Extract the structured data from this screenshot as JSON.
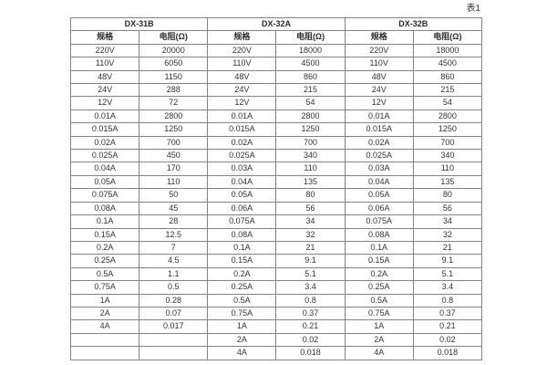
{
  "page": {
    "table_label": "表1"
  },
  "table": {
    "column_groups": [
      "DX-31B",
      "DX-32A",
      "DX-32B"
    ],
    "sub_headers": [
      "规格",
      "电阻(Ω)"
    ],
    "rows": [
      [
        "220V",
        "20000",
        "220V",
        "18000",
        "220V",
        "18000"
      ],
      [
        "110V",
        "6050",
        "110V",
        "4500",
        "110V",
        "4500"
      ],
      [
        "48V",
        "1150",
        "48V",
        "860",
        "48V",
        "860"
      ],
      [
        "24V",
        "288",
        "24V",
        "215",
        "24V",
        "215"
      ],
      [
        "12V",
        "72",
        "12V",
        "54",
        "12V",
        "54"
      ],
      [
        "0.01A",
        "2800",
        "0.01A",
        "2800",
        "0.01A",
        "2800"
      ],
      [
        "0.015A",
        "1250",
        "0.015A",
        "1250",
        "0.015A",
        "1250"
      ],
      [
        "0.02A",
        "700",
        "0.02A",
        "700",
        "0.02A",
        "700"
      ],
      [
        "0.025A",
        "450",
        "0.025A",
        "340",
        "0.025A",
        "340"
      ],
      [
        "0.04A",
        "170",
        "0.03A",
        "110",
        "0.03A",
        "110"
      ],
      [
        "0.05A",
        "110",
        "0.04A",
        "135",
        "0.04A",
        "135"
      ],
      [
        "0.075A",
        "50",
        "0.05A",
        "80",
        "0.05A",
        "80"
      ],
      [
        "0.08A",
        "45",
        "0.06A",
        "56",
        "0.06A",
        "56"
      ],
      [
        "0.1A",
        "28",
        "0.075A",
        "34",
        "0.075A",
        "34"
      ],
      [
        "0.15A",
        "12.5",
        "0.08A",
        "32",
        "0.08A",
        "32"
      ],
      [
        "0.2A",
        "7",
        "0.1A",
        "21",
        "0.1A",
        "21"
      ],
      [
        "0.25A",
        "4.5",
        "0.15A",
        "9.1",
        "0.15A",
        "9.1"
      ],
      [
        "0.5A",
        "1.1",
        "0.2A",
        "5.1",
        "0.2A",
        "5.1"
      ],
      [
        "0.75A",
        "0.5",
        "0.25A",
        "3.4",
        "0.25A",
        "3.4"
      ],
      [
        "1A",
        "0.28",
        "0.5A",
        "0.8",
        "0.5A",
        "0.8"
      ],
      [
        "2A",
        "0.07",
        "0.75A",
        "0.37",
        "0.75A",
        "0.37"
      ],
      [
        "4A",
        "0.017",
        "1A",
        "0.21",
        "1A",
        "0.21"
      ],
      [
        "",
        "",
        "2A",
        "0.02",
        "2A",
        "0.02"
      ],
      [
        "",
        "",
        "4A",
        "0.018",
        "4A",
        "0.018"
      ]
    ]
  }
}
